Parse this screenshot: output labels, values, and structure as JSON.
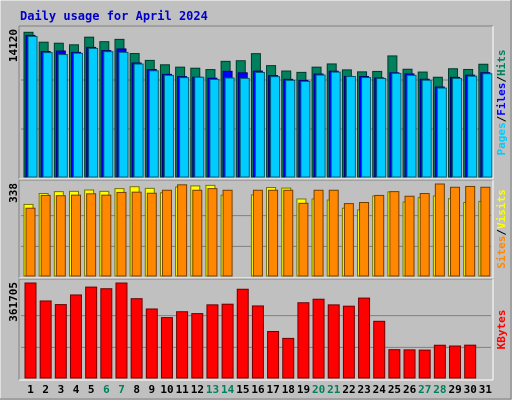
{
  "title": "Daily usage for April 2024",
  "colors": {
    "background": "#c0c0c0",
    "plot_background": "#c0c0c0",
    "title": "#0000cc",
    "hits": "#00805c",
    "files": "#0000ff",
    "pages": "#00ccff",
    "visits": "#ffff00",
    "sites": "#ff8800",
    "kbytes": "#ff0000",
    "weekend_label": "#00805c",
    "weekday_label": "#000000"
  },
  "chart_data": [
    {
      "type": "bar",
      "panel": "hits-files-pages",
      "side_label": [
        "Pages",
        "Files",
        "Hits"
      ],
      "max_label": "14120",
      "ylim": [
        0,
        14120
      ],
      "categories": [
        "1",
        "2",
        "3",
        "4",
        "5",
        "6",
        "7",
        "8",
        "9",
        "10",
        "11",
        "12",
        "13",
        "14",
        "15",
        "16",
        "17",
        "18",
        "19",
        "20",
        "21",
        "22",
        "23",
        "24",
        "25",
        "26",
        "27",
        "28",
        "29",
        "30",
        "31"
      ],
      "series": [
        {
          "name": "Hits",
          "values": [
            13900,
            12950,
            12850,
            12700,
            13430,
            13000,
            13220,
            11860,
            11200,
            10780,
            10550,
            10450,
            10320,
            11110,
            11170,
            11850,
            10700,
            10180,
            10050,
            10550,
            10860,
            10290,
            10100,
            10140,
            11630,
            10350,
            10080,
            9580,
            10400,
            10330,
            10830
          ]
        },
        {
          "name": "Files",
          "values": [
            13600,
            12050,
            12100,
            11970,
            12450,
            12140,
            12300,
            10950,
            10320,
            9860,
            9640,
            9590,
            9490,
            10150,
            10010,
            10170,
            9740,
            9380,
            9280,
            9890,
            10160,
            9660,
            9650,
            9520,
            10010,
            9900,
            9390,
            8640,
            9570,
            9780,
            10020
          ]
        },
        {
          "name": "Pages",
          "values": [
            13500,
            11950,
            11760,
            11880,
            12350,
            12040,
            11970,
            10850,
            10200,
            9760,
            9540,
            9580,
            9370,
            9510,
            9470,
            10040,
            9640,
            9280,
            9180,
            9790,
            10070,
            9650,
            9550,
            9460,
            9950,
            9760,
            9290,
            8540,
            9470,
            9680,
            9920
          ]
        }
      ]
    },
    {
      "type": "bar",
      "panel": "visits-sites",
      "side_label": [
        "Sites",
        "Visits"
      ],
      "max_label": "338",
      "ylim": [
        0,
        338
      ],
      "categories": [
        "1",
        "2",
        "3",
        "4",
        "5",
        "6",
        "7",
        "8",
        "9",
        "10",
        "11",
        "12",
        "13",
        "14",
        "15",
        "16",
        "17",
        "18",
        "19",
        "20",
        "21",
        "22",
        "23",
        "24",
        "25",
        "26",
        "27",
        "28",
        "29",
        "30",
        "31"
      ],
      "series": [
        {
          "name": "Visits",
          "values": [
            263,
            303,
            310,
            311,
            316,
            311,
            321,
            328,
            322,
            306,
            327,
            331,
            333,
            297,
            0,
            298,
            325,
            323,
            283,
            283,
            279,
            249,
            243,
            294,
            309,
            272,
            288,
            294,
            284,
            270,
            274
          ]
        },
        {
          "name": "Sites",
          "values": [
            249,
            296,
            295,
            297,
            302,
            297,
            307,
            308,
            304,
            315,
            335,
            315,
            321,
            315,
            0,
            315,
            315,
            315,
            267,
            315,
            315,
            266,
            270,
            296,
            310,
            293,
            303,
            338,
            326,
            329,
            326
          ]
        }
      ]
    },
    {
      "type": "bar",
      "panel": "kbytes",
      "side_label": [
        "KBytes"
      ],
      "max_label": "361705",
      "ylim": [
        0,
        361705
      ],
      "categories": [
        "1",
        "2",
        "3",
        "4",
        "5",
        "6",
        "7",
        "8",
        "9",
        "10",
        "11",
        "12",
        "13",
        "14",
        "15",
        "16",
        "17",
        "18",
        "19",
        "20",
        "21",
        "22",
        "23",
        "24",
        "25",
        "26",
        "27",
        "28",
        "29",
        "30",
        "31"
      ],
      "series": [
        {
          "name": "KBytes",
          "values": [
            361700,
            293300,
            279500,
            316200,
            346100,
            340000,
            361600,
            302100,
            262800,
            230000,
            252400,
            245300,
            278600,
            281000,
            337900,
            274400,
            177100,
            150800,
            286600,
            299900,
            278500,
            273400,
            304300,
            215900,
            107900,
            107200,
            106100,
            124700,
            121800,
            125000,
            0
          ]
        }
      ]
    }
  ],
  "x_labels": [
    {
      "day": "1",
      "weekend": false
    },
    {
      "day": "2",
      "weekend": false
    },
    {
      "day": "3",
      "weekend": false
    },
    {
      "day": "4",
      "weekend": false
    },
    {
      "day": "5",
      "weekend": false
    },
    {
      "day": "6",
      "weekend": true
    },
    {
      "day": "7",
      "weekend": true
    },
    {
      "day": "8",
      "weekend": false
    },
    {
      "day": "9",
      "weekend": false
    },
    {
      "day": "10",
      "weekend": false
    },
    {
      "day": "11",
      "weekend": false
    },
    {
      "day": "12",
      "weekend": false
    },
    {
      "day": "13",
      "weekend": true
    },
    {
      "day": "14",
      "weekend": true
    },
    {
      "day": "15",
      "weekend": false
    },
    {
      "day": "16",
      "weekend": false
    },
    {
      "day": "17",
      "weekend": false
    },
    {
      "day": "18",
      "weekend": false
    },
    {
      "day": "19",
      "weekend": false
    },
    {
      "day": "20",
      "weekend": true
    },
    {
      "day": "21",
      "weekend": true
    },
    {
      "day": "22",
      "weekend": false
    },
    {
      "day": "23",
      "weekend": false
    },
    {
      "day": "24",
      "weekend": false
    },
    {
      "day": "25",
      "weekend": false
    },
    {
      "day": "26",
      "weekend": false
    },
    {
      "day": "27",
      "weekend": true
    },
    {
      "day": "28",
      "weekend": true
    },
    {
      "day": "29",
      "weekend": false
    },
    {
      "day": "30",
      "weekend": false
    },
    {
      "day": "31",
      "weekend": false
    }
  ]
}
